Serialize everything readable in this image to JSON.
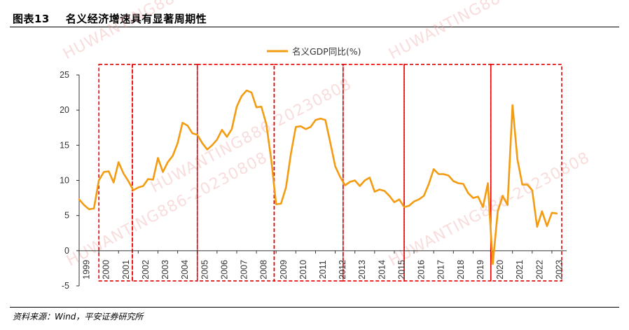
{
  "header": {
    "figure_label": "图表13",
    "title": "名义经济增速具有显著周期性"
  },
  "footer": {
    "source": "资料来源：Wind，平安证券研究所"
  },
  "watermark": {
    "texts": [
      "HUWANTING886-20230808"
    ]
  },
  "colors": {
    "series": "#f39c12",
    "cycle_box": "#e60000",
    "axis": "#333333"
  },
  "chart_data": {
    "type": "line",
    "title": "",
    "xlabel": "",
    "ylabel": "",
    "ylim": [
      -5,
      25
    ],
    "yticks": [
      -5,
      0,
      5,
      10,
      15,
      20,
      25
    ],
    "xlim": [
      1999.0,
      2023.75
    ],
    "xticks": [
      "1999",
      "2000",
      "2001",
      "2002",
      "2003",
      "2004",
      "2005",
      "2006",
      "2007",
      "2008",
      "2009",
      "2010",
      "2011",
      "2012",
      "2013",
      "2014",
      "2015",
      "2016",
      "2017",
      "2018",
      "2019",
      "2020",
      "2021",
      "2022",
      "2023"
    ],
    "legend": {
      "position": "top-center",
      "entries": [
        "名义GDP同比(%)"
      ]
    },
    "grid": false,
    "series": [
      {
        "name": "名义GDP同比(%)",
        "x": [
          1999.0,
          1999.25,
          1999.5,
          1999.75,
          2000.0,
          2000.25,
          2000.5,
          2000.75,
          2001.0,
          2001.25,
          2001.5,
          2001.75,
          2002.0,
          2002.25,
          2002.5,
          2002.75,
          2003.0,
          2003.25,
          2003.5,
          2003.75,
          2004.0,
          2004.25,
          2004.5,
          2004.75,
          2005.0,
          2005.25,
          2005.5,
          2005.75,
          2006.0,
          2006.25,
          2006.5,
          2006.75,
          2007.0,
          2007.25,
          2007.5,
          2007.75,
          2008.0,
          2008.25,
          2008.5,
          2008.75,
          2009.0,
          2009.25,
          2009.5,
          2009.75,
          2010.0,
          2010.25,
          2010.5,
          2010.75,
          2011.0,
          2011.25,
          2011.5,
          2011.75,
          2012.0,
          2012.25,
          2012.5,
          2012.75,
          2013.0,
          2013.25,
          2013.5,
          2013.75,
          2014.0,
          2014.25,
          2014.5,
          2014.75,
          2015.0,
          2015.25,
          2015.5,
          2015.75,
          2016.0,
          2016.25,
          2016.5,
          2016.75,
          2017.0,
          2017.25,
          2017.5,
          2017.75,
          2018.0,
          2018.25,
          2018.5,
          2018.75,
          2019.0,
          2019.25,
          2019.5,
          2019.75,
          2020.0,
          2020.25,
          2020.5,
          2020.75,
          2021.0,
          2021.25,
          2021.5,
          2021.75,
          2022.0,
          2022.25,
          2022.5,
          2022.75,
          2023.0,
          2023.25
        ],
        "y": [
          7.3,
          6.5,
          5.9,
          6.0,
          10.0,
          11.2,
          11.3,
          9.7,
          12.6,
          11.0,
          9.9,
          8.6,
          9.0,
          9.2,
          10.2,
          10.1,
          13.2,
          11.2,
          12.6,
          13.5,
          15.3,
          18.2,
          17.8,
          16.7,
          16.5,
          15.3,
          14.4,
          15.0,
          15.8,
          17.2,
          16.2,
          17.3,
          20.5,
          22.0,
          22.8,
          22.5,
          20.4,
          20.5,
          18.0,
          13.0,
          6.6,
          6.7,
          9.0,
          13.8,
          17.6,
          17.7,
          17.3,
          17.6,
          18.6,
          18.8,
          18.6,
          15.4,
          12.0,
          10.5,
          9.3,
          9.8,
          10.0,
          9.2,
          10.0,
          10.4,
          8.4,
          8.7,
          8.5,
          7.8,
          6.9,
          7.3,
          6.2,
          6.4,
          7.0,
          7.3,
          7.8,
          9.5,
          11.6,
          10.9,
          10.9,
          10.7,
          9.9,
          9.6,
          9.5,
          8.2,
          7.5,
          7.7,
          6.2,
          9.6,
          -1.9,
          5.6,
          7.8,
          6.5,
          20.7,
          13.0,
          9.4,
          9.4,
          8.6,
          3.4,
          5.6,
          3.5,
          5.4,
          5.3
        ]
      }
    ],
    "cycle_boxes": [
      {
        "x0": 2000.0,
        "x1": 2001.7
      },
      {
        "x0": 2001.7,
        "x1": 2005.0
      },
      {
        "x0": 2005.0,
        "x1": 2008.9
      },
      {
        "x0": 2008.9,
        "x1": 2012.4
      },
      {
        "x0": 2012.4,
        "x1": 2015.5
      },
      {
        "x0": 2015.5,
        "x1": 2019.9
      },
      {
        "x0": 2019.9,
        "x1": 2023.5
      }
    ],
    "cycle_box_ylim": [
      -4.3,
      26.5
    ]
  }
}
